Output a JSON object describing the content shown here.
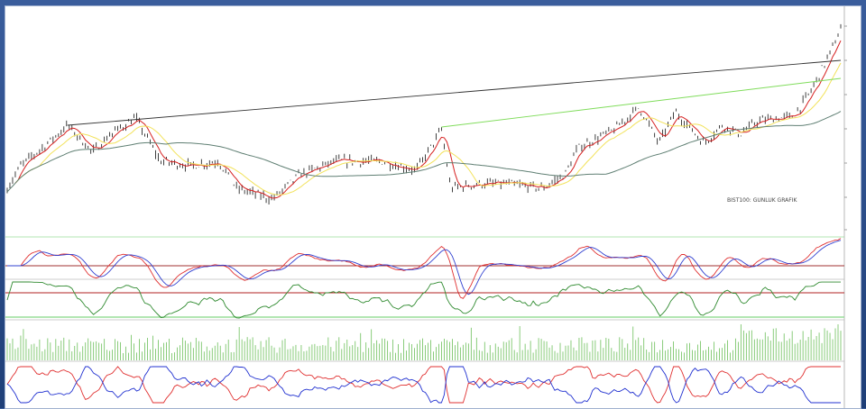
{
  "chart_data": {
    "type": "line",
    "title": "BIST100: GUNLUK GRAFIK",
    "xlabel": "",
    "ylabel": "",
    "ylim": [
      0,
      250
    ],
    "grid": false,
    "price_path": {
      "x": [
        0,
        15,
        45,
        67,
        95,
        115,
        143,
        170,
        205,
        235,
        255,
        295,
        325,
        365,
        415,
        455,
        483,
        493,
        525,
        555,
        595,
        620,
        635,
        675,
        703,
        725,
        743,
        775,
        795,
        815,
        835,
        875,
        895,
        915,
        927
      ],
      "y": [
        50,
        75,
        100,
        120,
        90,
        110,
        128,
        80,
        75,
        80,
        50,
        38,
        65,
        80,
        80,
        70,
        115,
        50,
        55,
        55,
        50,
        65,
        95,
        115,
        140,
        100,
        135,
        100,
        120,
        110,
        125,
        130,
        160,
        200,
        227
      ]
    },
    "moving_averages": [
      {
        "color": "#d62020",
        "period": 10
      },
      {
        "color": "#f2e25a",
        "period": 25
      },
      {
        "color": "#5f7f73",
        "period": 120
      }
    ],
    "trendlines": [
      {
        "color": "#333333",
        "from": [
          67,
          120
        ],
        "to": [
          927,
          192
        ]
      },
      {
        "color": "#7fdc5a",
        "from": [
          483,
          118
        ],
        "to": [
          927,
          172
        ]
      }
    ],
    "panels": [
      {
        "type": "macd",
        "colors": [
          "#e03030",
          "#3040d0"
        ],
        "signal_line_color": "#a03030"
      },
      {
        "type": "rsi",
        "color": "#2f8a2f",
        "level_line_color": "#b02020"
      },
      {
        "type": "volume",
        "color": "#6cbf5a"
      },
      {
        "type": "di",
        "colors": [
          "#e03030",
          "#2030d0"
        ]
      }
    ],
    "colors": {
      "frame": "#2a4a8a",
      "background": "#ffffff",
      "bars": "#111111"
    }
  }
}
